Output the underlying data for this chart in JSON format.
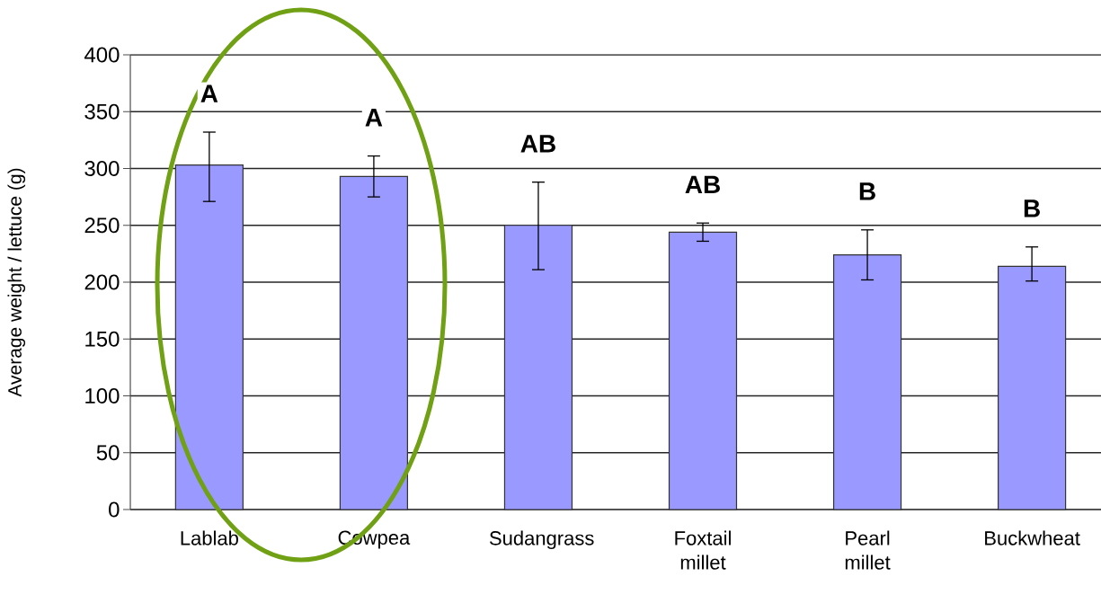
{
  "chart_data": {
    "type": "bar",
    "ylabel": "Average weight  / lettuce (g)",
    "categories": [
      "Lablab",
      "Cowpea",
      "Sudangrass",
      "Foxtail millet",
      "Pearl millet",
      "Buckwheat"
    ],
    "values": [
      303,
      293,
      250,
      244,
      224,
      214
    ],
    "errors": [
      [
        271,
        332
      ],
      [
        275,
        311
      ],
      [
        211,
        288
      ],
      [
        236,
        252
      ],
      [
        202,
        246
      ],
      [
        201,
        231
      ]
    ],
    "color": "#9999ff",
    "ylim": [
      0,
      400
    ],
    "yticks": [
      0,
      50,
      100,
      150,
      200,
      250,
      300,
      350,
      400
    ],
    "grid": "y",
    "annotations": [
      "A",
      "A",
      "AB",
      "AB",
      "B",
      "B"
    ]
  }
}
